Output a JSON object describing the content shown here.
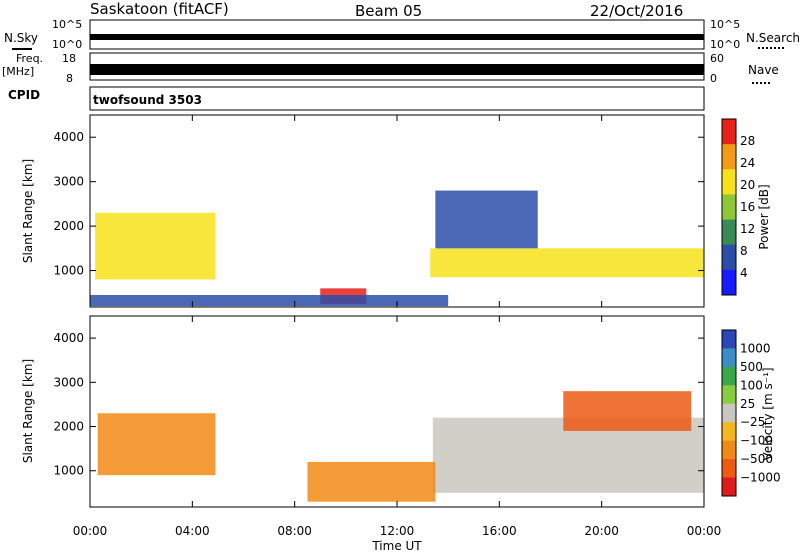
{
  "header": {
    "station": "Saskatoon (fitACF)",
    "beam": "Beam 05",
    "date": "22/Oct/2016"
  },
  "top_panels": {
    "nsky_label": "N.Sky",
    "nsearch_label": "N.Search",
    "noise_ticks": [
      "10^5",
      "10^0"
    ],
    "freq_label": "Freq.",
    "freq_unit": "[MHz]",
    "freq_ticks": [
      "18",
      "8"
    ],
    "nave_label": "Nave",
    "nave_ticks": [
      "60",
      "0"
    ],
    "cpid_label": "CPID",
    "cpid_value": "twofsound 3503"
  },
  "chart_data": [
    {
      "type": "heatmap",
      "name": "power",
      "ylabel": "Slant Range [km]",
      "xlabel": "",
      "ylim": [
        180,
        4500
      ],
      "xlim": [
        0,
        24
      ],
      "yticks": [
        "1000",
        "2000",
        "3000",
        "4000"
      ],
      "colorbar_label": "Power [dB]",
      "colorbar_ticks": [
        "4",
        "8",
        "12",
        "16",
        "20",
        "24",
        "28"
      ],
      "colorbar_colors": [
        "#1a1aff",
        "#2a4ea8",
        "#3a8a58",
        "#8ec63a",
        "#f7e21a",
        "#f29a16",
        "#e8201a"
      ],
      "features": [
        {
          "t_start": 0.2,
          "t_end": 4.9,
          "r_min": 800,
          "r_max": 2300,
          "level": 22
        },
        {
          "t_start": 9.0,
          "t_end": 10.8,
          "r_min": 250,
          "r_max": 600,
          "level": 28
        },
        {
          "t_start": 13.3,
          "t_end": 24.0,
          "r_min": 850,
          "r_max": 1500,
          "level": 20
        },
        {
          "t_start": 13.5,
          "t_end": 17.5,
          "r_min": 1500,
          "r_max": 2800,
          "level": 10
        },
        {
          "t_start": 0.0,
          "t_end": 14.0,
          "r_min": 200,
          "r_max": 450,
          "level": 8
        }
      ]
    },
    {
      "type": "heatmap",
      "name": "velocity",
      "ylabel": "Slant Range [km]",
      "xlabel": "Time UT",
      "ylim": [
        180,
        4500
      ],
      "xlim": [
        0,
        24
      ],
      "yticks": [
        "1000",
        "2000",
        "3000",
        "4000"
      ],
      "xticks": [
        "00:00",
        "04:00",
        "08:00",
        "12:00",
        "16:00",
        "20:00",
        "00:00"
      ],
      "colorbar_label": "Velocity [m s⁻¹]",
      "colorbar_ticks": [
        "1000",
        "500",
        "100",
        "25",
        "−25",
        "−100",
        "−500",
        "−1000"
      ],
      "colorbar_colors": [
        "#2a46b8",
        "#3a8ec4",
        "#3aa84a",
        "#88cc44",
        "#c8c8c0",
        "#f2b81e",
        "#f08a14",
        "#ec5a14",
        "#e01a1a"
      ],
      "features": [
        {
          "t_start": 0.3,
          "t_end": 4.9,
          "r_min": 900,
          "r_max": 2300,
          "level": -300
        },
        {
          "t_start": 13.4,
          "t_end": 24.0,
          "r_min": 500,
          "r_max": 2200,
          "level": 0
        },
        {
          "t_start": 8.5,
          "t_end": 13.5,
          "r_min": 300,
          "r_max": 1200,
          "level": -150
        },
        {
          "t_start": 18.5,
          "t_end": 23.5,
          "r_min": 1900,
          "r_max": 2800,
          "level": -600
        }
      ]
    }
  ]
}
